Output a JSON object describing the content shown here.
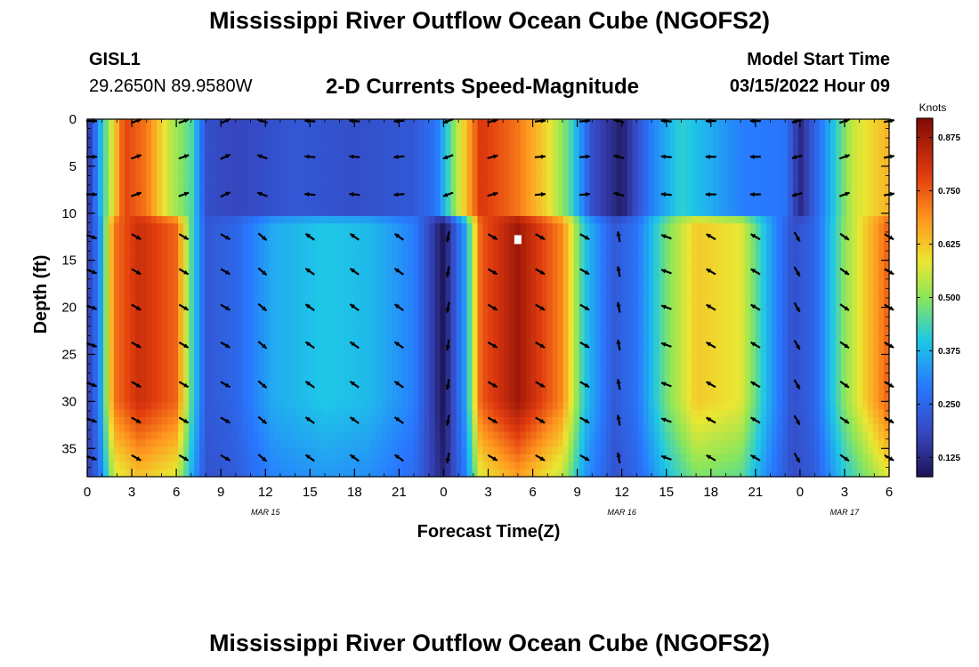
{
  "header": {
    "title": "Mississippi River Outflow Ocean Cube (NGOFS2)",
    "station": "GISL1",
    "latlon": "29.2650N  89.9580W",
    "subtitle": "2-D Currents Speed-Magnitude",
    "start_label": "Model Start Time",
    "start_value": "03/15/2022 Hour 09"
  },
  "footer": {
    "title": "Mississippi River Outflow Ocean Cube (NGOFS2)"
  },
  "chart_data": {
    "type": "heatmap",
    "title": "2-D Currents Speed-Magnitude",
    "xlabel": "Forecast Time(Z)",
    "ylabel": "Depth (ft)",
    "colorbar_label": "Knots",
    "x_range_hours": [
      0,
      54
    ],
    "y_range_ft": [
      0,
      38
    ],
    "x_tick_hours": [
      0,
      3,
      6,
      9,
      12,
      15,
      18,
      21,
      24,
      27,
      30,
      33,
      36,
      39,
      42,
      45,
      48,
      51,
      54
    ],
    "x_tick_labels": [
      "0",
      "3",
      "6",
      "9",
      "12",
      "15",
      "18",
      "21",
      "0",
      "3",
      "6",
      "9",
      "12",
      "15",
      "18",
      "21",
      "0",
      "3",
      "6"
    ],
    "date_labels": [
      {
        "text": "MAR 15",
        "hour": 12
      },
      {
        "text": "MAR 16",
        "hour": 36
      },
      {
        "text": "MAR 17",
        "hour": 51
      }
    ],
    "y_ticks": [
      0,
      5,
      10,
      15,
      20,
      25,
      30,
      35
    ],
    "colorbar_ticks": [
      "0.125",
      "0.250",
      "0.375",
      "0.500",
      "0.625",
      "0.750",
      "0.875"
    ],
    "colorbar_range": [
      0.08,
      0.92
    ],
    "layers": [
      {
        "name": "surface",
        "depth_range_ft": [
          0,
          10
        ]
      },
      {
        "name": "subsurface",
        "depth_range_ft": [
          11,
          38
        ]
      }
    ],
    "surface_speed_knots": [
      {
        "hour": 0,
        "value": 0.12
      },
      {
        "hour": 1,
        "value": 0.4
      },
      {
        "hour": 2.5,
        "value": 0.78
      },
      {
        "hour": 4,
        "value": 0.72
      },
      {
        "hour": 5.5,
        "value": 0.55
      },
      {
        "hour": 7,
        "value": 0.45
      },
      {
        "hour": 8,
        "value": 0.2
      },
      {
        "hour": 10,
        "value": 0.18
      },
      {
        "hour": 14,
        "value": 0.22
      },
      {
        "hour": 18,
        "value": 0.2
      },
      {
        "hour": 22,
        "value": 0.22
      },
      {
        "hour": 23.5,
        "value": 0.28
      },
      {
        "hour": 25,
        "value": 0.55
      },
      {
        "hour": 26.5,
        "value": 0.8
      },
      {
        "hour": 29,
        "value": 0.72
      },
      {
        "hour": 31,
        "value": 0.6
      },
      {
        "hour": 32.5,
        "value": 0.45
      },
      {
        "hour": 34,
        "value": 0.2
      },
      {
        "hour": 36,
        "value": 0.1
      },
      {
        "hour": 38,
        "value": 0.3
      },
      {
        "hour": 40,
        "value": 0.42
      },
      {
        "hour": 44,
        "value": 0.3
      },
      {
        "hour": 47,
        "value": 0.28
      },
      {
        "hour": 48,
        "value": 0.12
      },
      {
        "hour": 49.5,
        "value": 0.3
      },
      {
        "hour": 51.5,
        "value": 0.55
      },
      {
        "hour": 54,
        "value": 0.65
      }
    ],
    "subsurface_speed_knots": [
      {
        "hour": 0,
        "value": 0.15
      },
      {
        "hour": 0.8,
        "value": 0.3
      },
      {
        "hour": 1.8,
        "value": 0.72
      },
      {
        "hour": 3.5,
        "value": 0.82
      },
      {
        "hour": 6,
        "value": 0.74
      },
      {
        "hour": 7,
        "value": 0.45
      },
      {
        "hour": 8,
        "value": 0.22
      },
      {
        "hour": 10,
        "value": 0.25
      },
      {
        "hour": 12.5,
        "value": 0.36
      },
      {
        "hour": 16,
        "value": 0.4
      },
      {
        "hour": 19,
        "value": 0.38
      },
      {
        "hour": 22,
        "value": 0.3
      },
      {
        "hour": 24,
        "value": 0.08
      },
      {
        "hour": 25.5,
        "value": 0.35
      },
      {
        "hour": 26.5,
        "value": 0.75
      },
      {
        "hour": 29,
        "value": 0.88
      },
      {
        "hour": 32,
        "value": 0.7
      },
      {
        "hour": 33.5,
        "value": 0.4
      },
      {
        "hour": 35.5,
        "value": 0.22
      },
      {
        "hour": 37,
        "value": 0.28
      },
      {
        "hour": 39,
        "value": 0.48
      },
      {
        "hour": 41,
        "value": 0.62
      },
      {
        "hour": 44,
        "value": 0.58
      },
      {
        "hour": 46,
        "value": 0.35
      },
      {
        "hour": 47.5,
        "value": 0.2
      },
      {
        "hour": 49,
        "value": 0.25
      },
      {
        "hour": 51,
        "value": 0.5
      },
      {
        "hour": 54,
        "value": 0.75
      }
    ],
    "vector_hours": [
      0.3,
      3.3,
      6.5,
      9.3,
      11.8,
      15,
      18,
      21,
      24.3,
      27.3,
      30.5,
      33.5,
      35.8,
      39,
      42,
      45,
      47.8,
      51,
      54
    ],
    "vector_depths_ft": [
      0.2,
      4,
      8,
      12.5,
      16.2,
      20,
      24,
      28.2,
      32,
      36
    ],
    "vector_direction_deg_surface": [
      0,
      20,
      20,
      25,
      160,
      175,
      175,
      185,
      200,
      15,
      5,
      5,
      165,
      175,
      180,
      180,
      195,
      20,
      10
    ],
    "vector_direction_deg_subsurface": [
      -20,
      -30,
      -30,
      -30,
      -40,
      145,
      145,
      145,
      -100,
      -30,
      -30,
      -30,
      100,
      160,
      150,
      150,
      -60,
      -35,
      -30
    ],
    "marker": {
      "hour": 29.0,
      "depth_ft": 12.8
    }
  }
}
